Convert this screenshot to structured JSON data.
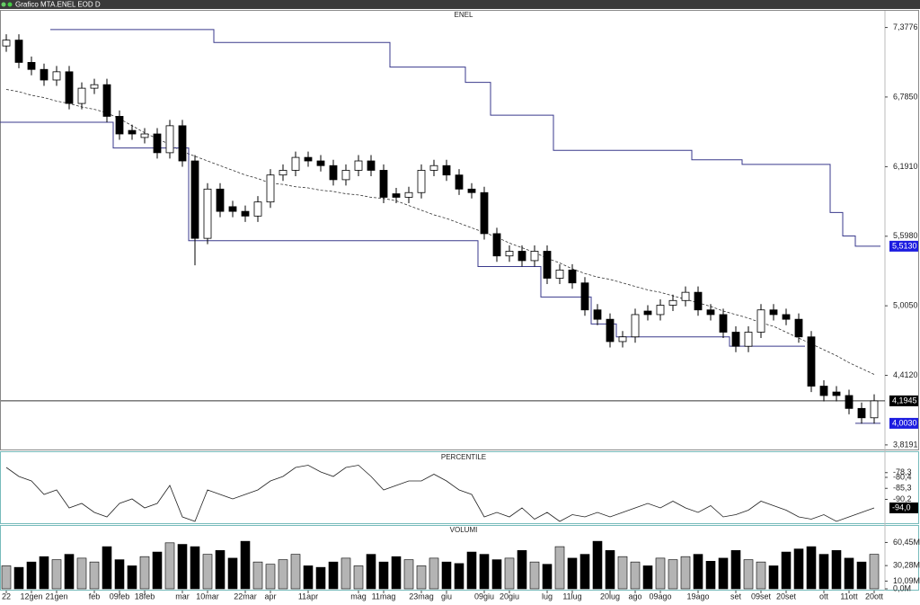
{
  "window_title": "Grafico MTA.ENEL EOD D",
  "chart_data": [
    {
      "type": "candlestick",
      "title": "ENEL",
      "open": [
        7.22,
        7.27,
        7.08,
        7.02,
        6.93,
        7.0,
        6.73,
        6.86,
        6.89,
        6.62,
        6.5,
        6.44,
        6.47,
        6.31,
        6.54,
        6.24,
        5.58,
        6.0,
        5.85,
        5.81,
        5.77,
        5.89,
        6.12,
        6.16,
        6.27,
        6.24,
        6.2,
        6.08,
        6.16,
        6.24,
        6.16,
        5.96,
        5.93,
        5.97,
        6.16,
        6.2,
        6.12,
        6.0,
        5.97,
        5.62,
        5.43,
        5.47,
        5.39,
        5.47,
        5.24,
        5.31,
        5.2,
        4.97,
        4.89,
        4.7,
        4.74,
        4.96,
        4.93,
        5.01,
        5.05,
        5.12,
        4.97,
        4.93,
        4.78,
        4.66,
        4.78,
        4.97,
        4.93,
        4.89,
        4.74,
        4.32,
        4.27,
        4.24,
        4.13,
        4.05
      ],
      "high": [
        7.32,
        7.32,
        7.13,
        7.07,
        7.05,
        7.05,
        6.91,
        6.94,
        6.94,
        6.67,
        6.55,
        6.52,
        6.52,
        6.59,
        6.59,
        6.29,
        6.05,
        6.05,
        5.9,
        5.86,
        5.94,
        6.17,
        6.21,
        6.32,
        6.32,
        6.29,
        6.25,
        6.21,
        6.29,
        6.29,
        6.21,
        6.01,
        6.02,
        6.21,
        6.25,
        6.25,
        6.17,
        6.05,
        6.02,
        5.67,
        5.52,
        5.52,
        5.52,
        5.52,
        5.36,
        5.36,
        5.25,
        5.02,
        4.94,
        4.79,
        4.98,
        5.01,
        5.06,
        5.1,
        5.17,
        5.17,
        5.02,
        4.98,
        4.83,
        4.83,
        5.02,
        5.02,
        4.98,
        4.94,
        4.79,
        4.37,
        4.32,
        4.29,
        4.18,
        4.25
      ],
      "low": [
        7.17,
        7.03,
        6.97,
        6.88,
        6.88,
        6.68,
        6.68,
        6.81,
        6.57,
        6.42,
        6.42,
        6.39,
        6.26,
        6.26,
        6.19,
        5.35,
        5.53,
        5.76,
        5.76,
        5.72,
        5.72,
        5.84,
        6.07,
        6.11,
        6.19,
        6.15,
        6.03,
        6.03,
        6.11,
        6.11,
        5.88,
        5.88,
        5.88,
        5.92,
        6.11,
        6.07,
        5.95,
        5.92,
        5.57,
        5.38,
        5.38,
        5.34,
        5.34,
        5.19,
        5.19,
        5.15,
        4.92,
        4.84,
        4.65,
        4.65,
        4.69,
        4.88,
        4.88,
        4.96,
        5.0,
        4.92,
        4.88,
        4.73,
        4.61,
        4.61,
        4.73,
        4.88,
        4.84,
        4.69,
        4.27,
        4.19,
        4.19,
        4.08,
        4.0,
        4.0
      ],
      "close": [
        7.27,
        7.08,
        7.02,
        6.93,
        7.0,
        6.73,
        6.86,
        6.89,
        6.62,
        6.47,
        6.47,
        6.47,
        6.31,
        6.54,
        6.24,
        5.58,
        6.0,
        5.81,
        5.81,
        5.77,
        5.89,
        6.12,
        6.16,
        6.27,
        6.24,
        6.2,
        6.08,
        6.16,
        6.24,
        6.16,
        5.93,
        5.93,
        5.97,
        6.16,
        6.2,
        6.12,
        6.0,
        5.97,
        5.62,
        5.43,
        5.47,
        5.39,
        5.47,
        5.24,
        5.31,
        5.2,
        4.97,
        4.89,
        4.7,
        4.74,
        4.93,
        4.93,
        5.01,
        5.05,
        5.12,
        4.97,
        4.93,
        4.78,
        4.66,
        4.78,
        4.97,
        4.93,
        4.89,
        4.74,
        4.32,
        4.24,
        4.24,
        4.13,
        4.05,
        4.1945
      ],
      "up_color": "#ffffff",
      "down_color": "#000000",
      "ma": {
        "color": "#333333",
        "values": [
          6.85,
          6.83,
          6.8,
          6.78,
          6.75,
          6.73,
          6.7,
          6.68,
          6.65,
          6.6,
          6.54,
          6.48,
          6.43,
          6.38,
          6.32,
          6.28,
          6.24,
          6.2,
          6.16,
          6.12,
          6.09,
          6.05,
          6.04,
          6.02,
          6.01,
          5.99,
          5.98,
          5.96,
          5.95,
          5.93,
          5.92,
          5.9,
          5.86,
          5.82,
          5.78,
          5.75,
          5.71,
          5.67,
          5.63,
          5.59,
          5.54,
          5.5,
          5.46,
          5.41,
          5.37,
          5.32,
          5.28,
          5.25,
          5.23,
          5.2,
          5.17,
          5.14,
          5.12,
          5.09,
          5.06,
          5.03,
          5.0,
          4.96,
          4.93,
          4.9,
          4.86,
          4.83,
          4.78,
          4.73,
          4.68,
          4.63,
          4.58,
          4.52,
          4.47,
          4.42
        ]
      },
      "stops": [
        {
          "color": "#3a3a8c",
          "last_label": "5,5130",
          "values": [
            null,
            null,
            null,
            null,
            7.36,
            7.36,
            7.36,
            7.36,
            7.36,
            7.36,
            7.36,
            7.36,
            7.36,
            7.36,
            7.36,
            7.36,
            7.36,
            7.25,
            7.25,
            7.25,
            7.25,
            7.25,
            7.25,
            7.25,
            7.25,
            7.25,
            7.25,
            7.25,
            7.25,
            7.25,
            7.25,
            7.04,
            7.04,
            7.04,
            7.04,
            7.04,
            7.04,
            6.91,
            6.91,
            6.63,
            6.63,
            6.63,
            6.63,
            6.63,
            6.33,
            6.33,
            6.33,
            6.33,
            6.33,
            6.33,
            6.33,
            6.33,
            6.33,
            6.33,
            6.33,
            6.25,
            6.25,
            6.25,
            6.25,
            6.21,
            6.21,
            6.21,
            6.21,
            6.21,
            6.21,
            6.21,
            5.8,
            5.6,
            5.513,
            5.513
          ]
        },
        {
          "color": "#3a3a8c",
          "last_label": "4,0030",
          "values": [
            6.57,
            6.57,
            6.57,
            6.57,
            6.57,
            6.57,
            6.57,
            6.57,
            6.57,
            6.35,
            6.35,
            6.35,
            6.35,
            6.35,
            6.35,
            5.56,
            5.56,
            5.56,
            5.56,
            5.56,
            5.56,
            5.56,
            5.56,
            5.56,
            5.56,
            5.56,
            5.56,
            5.56,
            5.56,
            5.56,
            5.56,
            5.56,
            5.56,
            5.56,
            5.56,
            5.56,
            5.56,
            5.56,
            5.34,
            5.34,
            5.34,
            5.34,
            5.34,
            5.08,
            5.08,
            5.08,
            5.08,
            4.85,
            4.85,
            4.74,
            4.74,
            4.74,
            4.74,
            4.74,
            4.74,
            4.74,
            4.74,
            4.74,
            4.66,
            4.66,
            4.66,
            4.66,
            4.66,
            4.66,
            null,
            null,
            null,
            null,
            4.003,
            4.003
          ]
        }
      ],
      "last_price": {
        "value": 4.1945,
        "label": "4,1945"
      },
      "ylim": [
        3.78,
        7.52
      ],
      "yticks": [
        {
          "value": 7.3776,
          "label": "7,3776"
        },
        {
          "value": 6.785,
          "label": "6,7850"
        },
        {
          "value": 6.191,
          "label": "6,1910"
        },
        {
          "value": 5.598,
          "label": "5,5980"
        },
        {
          "value": 5.005,
          "label": "5,0050"
        },
        {
          "value": 4.412,
          "label": "4,4120"
        },
        {
          "value": 3.8191,
          "label": "3,8191"
        }
      ]
    },
    {
      "type": "line",
      "title": "PERCENTILE",
      "color": "#222222",
      "last_label": "-94,0",
      "values": [
        -76,
        -80,
        -82,
        -88,
        -86,
        -94,
        -92,
        -96,
        -98,
        -92,
        -90,
        -94,
        -92,
        -84,
        -98,
        -100,
        -86,
        -88,
        -90,
        -88,
        -86,
        -82,
        -80,
        -76,
        -75,
        -78,
        -80,
        -76,
        -75,
        -80,
        -86,
        -84,
        -82,
        -82,
        -79,
        -82,
        -86,
        -88,
        -98,
        -96,
        -98,
        -94,
        -99,
        -96,
        -100,
        -97,
        -98,
        -96,
        -98,
        -96,
        -94,
        -92,
        -94,
        -91,
        -94,
        -96,
        -93,
        -98,
        -97,
        -95,
        -91,
        -93,
        -95,
        -98,
        -99,
        -97,
        -100,
        -98,
        -96,
        -94
      ],
      "ylim": [
        -100,
        -74
      ],
      "yticks": [
        {
          "value": -78.3,
          "label": "-78,3"
        },
        {
          "value": -80.4,
          "label": "-80,4"
        },
        {
          "value": -85.3,
          "label": "-85,3"
        },
        {
          "value": -90.2,
          "label": "-90,2"
        }
      ]
    },
    {
      "type": "bar",
      "title": "VOLUMI",
      "up_color": "#b4b4b4",
      "down_color": "#000000",
      "categories": [
        "22",
        null,
        "12gen",
        null,
        "21gen",
        null,
        null,
        "feb",
        null,
        "09feb",
        null,
        "18feb",
        null,
        null,
        "mar",
        null,
        "10mar",
        null,
        null,
        "22mar",
        null,
        "apr",
        null,
        null,
        "11apr",
        null,
        null,
        null,
        "mag",
        null,
        "11mag",
        null,
        null,
        "23mag",
        null,
        "giu",
        null,
        null,
        "09giu",
        null,
        "20giu",
        null,
        null,
        "lug",
        null,
        "11lug",
        null,
        null,
        "20lug",
        null,
        "ago",
        null,
        "09ago",
        null,
        null,
        "19ago",
        null,
        null,
        "set",
        null,
        "09set",
        null,
        "20set",
        null,
        null,
        "ott",
        null,
        "11ott",
        null,
        "20ott"
      ],
      "values": [
        30,
        28,
        35,
        42,
        38,
        45,
        40,
        35,
        55,
        38,
        30,
        42,
        48,
        60,
        58,
        55,
        45,
        50,
        40,
        62,
        35,
        32,
        38,
        45,
        30,
        28,
        35,
        40,
        30,
        45,
        35,
        42,
        38,
        30,
        40,
        35,
        33,
        48,
        45,
        38,
        40,
        50,
        35,
        32,
        55,
        40,
        45,
        62,
        50,
        42,
        35,
        30,
        40,
        38,
        42,
        45,
        36,
        40,
        50,
        38,
        35,
        30,
        48,
        52,
        55,
        45,
        50,
        40,
        35,
        45
      ],
      "ylim": [
        0,
        68
      ],
      "yticks": [
        {
          "value": 60.45,
          "label": "60,45M"
        },
        {
          "value": 30.28,
          "label": "30,28M"
        },
        {
          "value": 10.09,
          "label": "10,09M"
        },
        {
          "value": 0,
          "label": "0,0M"
        }
      ]
    }
  ]
}
